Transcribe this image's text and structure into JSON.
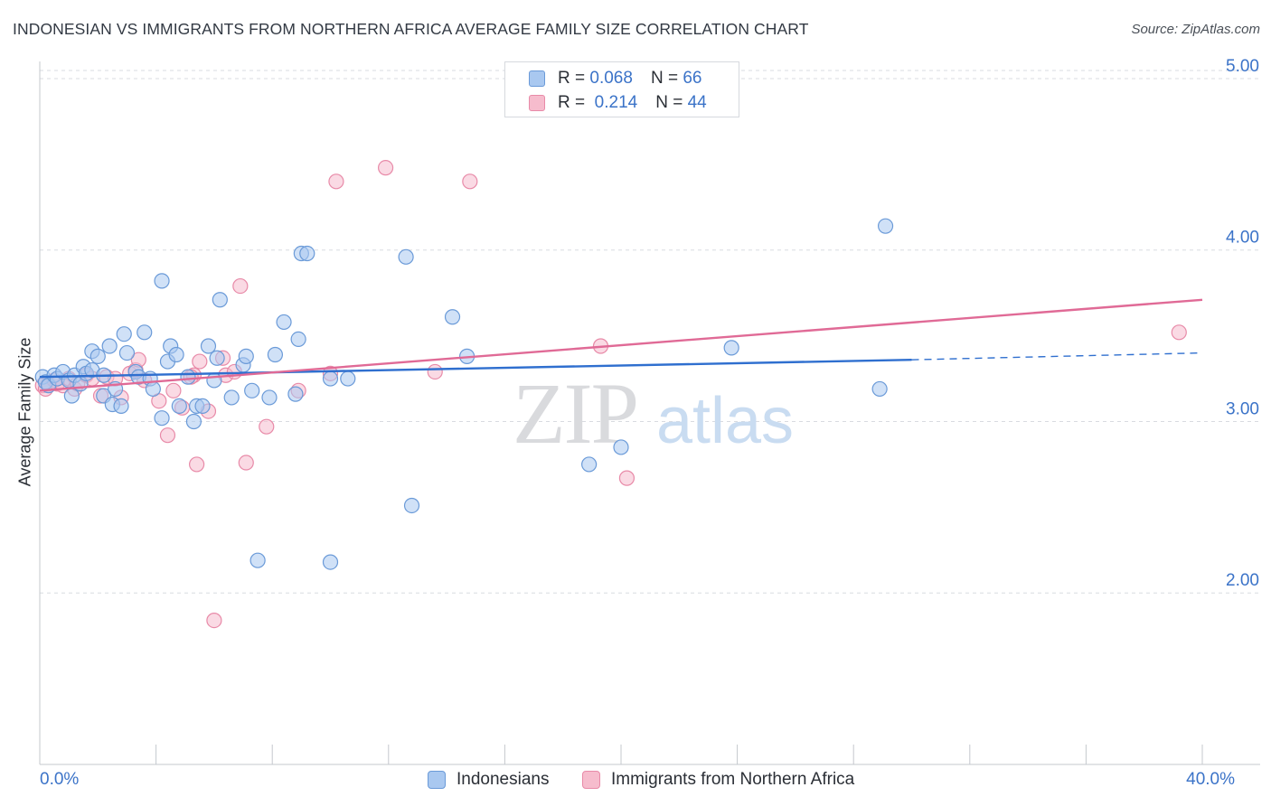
{
  "header": {
    "title": "INDONESIAN VS IMMIGRANTS FROM NORTHERN AFRICA AVERAGE FAMILY SIZE CORRELATION CHART",
    "source": "Source: ZipAtlas.com"
  },
  "watermark": {
    "zip": "ZIP",
    "atlas": "atlas"
  },
  "legend": {
    "rows": [
      {
        "r_label": "R =",
        "r_value": "0.068",
        "n_label": "N =",
        "n_value": "66"
      },
      {
        "r_label": "R =",
        "r_value": "0.214",
        "n_label": "N =",
        "n_value": "44"
      }
    ]
  },
  "colors": {
    "indonesian_fill": "#a9c8f0",
    "indonesian_stroke": "#6a9ad8",
    "indonesian_line": "#2f6fcf",
    "africa_fill": "#f6bccd",
    "africa_stroke": "#e88aa8",
    "africa_line": "#e06a96",
    "axis_label": "#3b73c8",
    "grid": "#d8dbe0"
  },
  "chart_data": {
    "type": "scatter",
    "xlabel": "",
    "ylabel": "Average Family Size",
    "xlim": [
      0,
      40
    ],
    "ylim": [
      1.0,
      5.1
    ],
    "x_tick_labels": {
      "min": "0.0%",
      "max": "40.0%"
    },
    "y_ticks": [
      2.0,
      3.0,
      4.0,
      5.0
    ],
    "y_tick_labels": [
      "2.00",
      "3.00",
      "4.00",
      "5.00"
    ],
    "grid": "horizontal dashed",
    "legend_placement": "top-center",
    "series": [
      {
        "name": "Indonesians",
        "trend": {
          "x0": 0,
          "y0": 3.26,
          "x1": 30.0,
          "y1": 3.36,
          "dashed_to": 40,
          "dashed_y": 3.4
        },
        "points": [
          [
            0.1,
            3.26
          ],
          [
            0.2,
            3.23
          ],
          [
            0.3,
            3.21
          ],
          [
            0.5,
            3.27
          ],
          [
            0.6,
            3.25
          ],
          [
            0.8,
            3.29
          ],
          [
            1.0,
            3.24
          ],
          [
            1.1,
            3.15
          ],
          [
            1.2,
            3.27
          ],
          [
            1.4,
            3.22
          ],
          [
            1.5,
            3.32
          ],
          [
            1.6,
            3.28
          ],
          [
            1.8,
            3.3
          ],
          [
            1.8,
            3.41
          ],
          [
            2.0,
            3.38
          ],
          [
            2.2,
            3.27
          ],
          [
            2.2,
            3.15
          ],
          [
            2.4,
            3.44
          ],
          [
            2.5,
            3.1
          ],
          [
            2.6,
            3.19
          ],
          [
            2.8,
            3.09
          ],
          [
            2.9,
            3.51
          ],
          [
            3.0,
            3.4
          ],
          [
            3.3,
            3.29
          ],
          [
            3.4,
            3.26
          ],
          [
            3.6,
            3.52
          ],
          [
            3.8,
            3.25
          ],
          [
            3.9,
            3.19
          ],
          [
            4.2,
            3.82
          ],
          [
            4.2,
            3.02
          ],
          [
            4.4,
            3.35
          ],
          [
            4.5,
            3.44
          ],
          [
            4.7,
            3.39
          ],
          [
            4.8,
            3.09
          ],
          [
            5.1,
            3.26
          ],
          [
            5.3,
            3.0
          ],
          [
            5.4,
            3.09
          ],
          [
            5.6,
            3.09
          ],
          [
            5.8,
            3.44
          ],
          [
            6.0,
            3.24
          ],
          [
            6.1,
            3.37
          ],
          [
            6.2,
            3.71
          ],
          [
            6.6,
            3.14
          ],
          [
            7.0,
            3.33
          ],
          [
            7.1,
            3.38
          ],
          [
            7.3,
            3.18
          ],
          [
            7.5,
            2.19
          ],
          [
            7.9,
            3.14
          ],
          [
            8.1,
            3.39
          ],
          [
            8.4,
            3.58
          ],
          [
            8.8,
            3.16
          ],
          [
            8.9,
            3.48
          ],
          [
            9.0,
            3.98
          ],
          [
            9.2,
            3.98
          ],
          [
            10.0,
            3.25
          ],
          [
            10.6,
            3.25
          ],
          [
            12.6,
            3.96
          ],
          [
            12.8,
            2.51
          ],
          [
            14.2,
            3.61
          ],
          [
            14.7,
            3.38
          ],
          [
            18.9,
            2.75
          ],
          [
            20.0,
            2.85
          ],
          [
            23.8,
            3.43
          ],
          [
            28.9,
            3.19
          ],
          [
            29.1,
            4.14
          ],
          [
            10.0,
            2.18
          ]
        ]
      },
      {
        "name": "Immigrants from Northern Africa",
        "trend": {
          "x0": 0,
          "y0": 3.18,
          "x1": 40,
          "y1": 3.71
        },
        "points": [
          [
            0.1,
            3.21
          ],
          [
            0.2,
            3.19
          ],
          [
            0.3,
            3.22
          ],
          [
            0.5,
            3.24
          ],
          [
            0.6,
            3.22
          ],
          [
            0.8,
            3.21
          ],
          [
            1.0,
            3.25
          ],
          [
            1.2,
            3.19
          ],
          [
            1.3,
            3.22
          ],
          [
            1.6,
            3.27
          ],
          [
            1.8,
            3.25
          ],
          [
            2.1,
            3.15
          ],
          [
            2.3,
            3.26
          ],
          [
            2.6,
            3.25
          ],
          [
            2.8,
            3.14
          ],
          [
            3.1,
            3.28
          ],
          [
            3.3,
            3.3
          ],
          [
            3.4,
            3.36
          ],
          [
            3.6,
            3.24
          ],
          [
            4.1,
            3.12
          ],
          [
            4.4,
            2.92
          ],
          [
            4.6,
            3.18
          ],
          [
            4.9,
            3.08
          ],
          [
            5.3,
            3.27
          ],
          [
            5.4,
            2.75
          ],
          [
            5.5,
            3.35
          ],
          [
            5.8,
            3.06
          ],
          [
            6.0,
            1.84
          ],
          [
            6.3,
            3.37
          ],
          [
            6.4,
            3.27
          ],
          [
            6.7,
            3.29
          ],
          [
            6.9,
            3.79
          ],
          [
            7.1,
            2.76
          ],
          [
            7.8,
            2.97
          ],
          [
            8.9,
            3.18
          ],
          [
            10.0,
            3.28
          ],
          [
            10.2,
            4.4
          ],
          [
            11.9,
            4.48
          ],
          [
            13.6,
            3.29
          ],
          [
            14.8,
            4.4
          ],
          [
            19.3,
            3.44
          ],
          [
            20.2,
            2.67
          ],
          [
            39.2,
            3.52
          ],
          [
            5.2,
            3.26
          ]
        ]
      }
    ]
  }
}
